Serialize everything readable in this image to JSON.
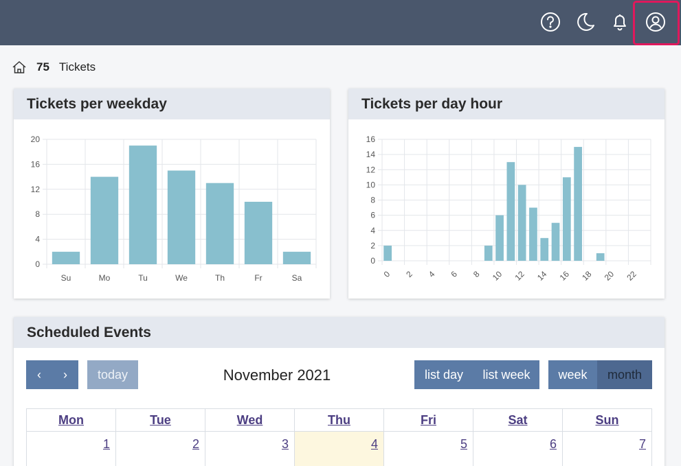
{
  "header": {
    "icons": [
      "help-icon",
      "moon-icon",
      "bell-icon",
      "user-icon"
    ],
    "accent": "#e0185c",
    "bar_color": "#4a576c"
  },
  "breadcrumb": {
    "count": "75",
    "label": "Tickets"
  },
  "weekday_card": {
    "title": "Tickets per weekday",
    "chart_data": {
      "type": "bar",
      "categories": [
        "Su",
        "Mo",
        "Tu",
        "We",
        "Th",
        "Fr",
        "Sa"
      ],
      "values": [
        2,
        14,
        19,
        15,
        13,
        10,
        2
      ],
      "ylim": [
        0,
        20
      ],
      "yticks": [
        "0",
        "4",
        "8",
        "12",
        "16",
        "20"
      ],
      "grid": true,
      "color": "#88bfce"
    }
  },
  "hour_card": {
    "title": "Tickets per day hour",
    "chart_data": {
      "type": "bar",
      "categories": [
        "0",
        "1",
        "2",
        "3",
        "4",
        "5",
        "6",
        "7",
        "8",
        "9",
        "10",
        "11",
        "12",
        "13",
        "14",
        "15",
        "16",
        "17",
        "18",
        "19",
        "20",
        "21",
        "22",
        "23"
      ],
      "values": [
        2,
        0,
        0,
        0,
        0,
        0,
        0,
        0,
        0,
        2,
        6,
        13,
        10,
        7,
        3,
        5,
        11,
        15,
        0,
        1,
        0,
        0,
        0,
        0
      ],
      "ylim": [
        0,
        16
      ],
      "yticks": [
        "0",
        "2",
        "4",
        "6",
        "8",
        "10",
        "12",
        "14",
        "16"
      ],
      "xticks": [
        "0",
        "2",
        "4",
        "6",
        "8",
        "10",
        "12",
        "14",
        "16",
        "18",
        "20",
        "22"
      ],
      "grid": true,
      "color": "#88bfce"
    }
  },
  "events_card": {
    "title": "Scheduled Events",
    "toolbar": {
      "prev_label": "‹",
      "next_label": "›",
      "today_label": "today",
      "title": "November 2021",
      "list_day_label": "list day",
      "list_week_label": "list week",
      "week_label": "week",
      "month_label": "month"
    },
    "weekdays": [
      "Mon",
      "Tue",
      "Wed",
      "Thu",
      "Fri",
      "Sat",
      "Sun"
    ],
    "days": [
      "1",
      "2",
      "3",
      "4",
      "5",
      "6",
      "7"
    ],
    "today_index": 3
  }
}
